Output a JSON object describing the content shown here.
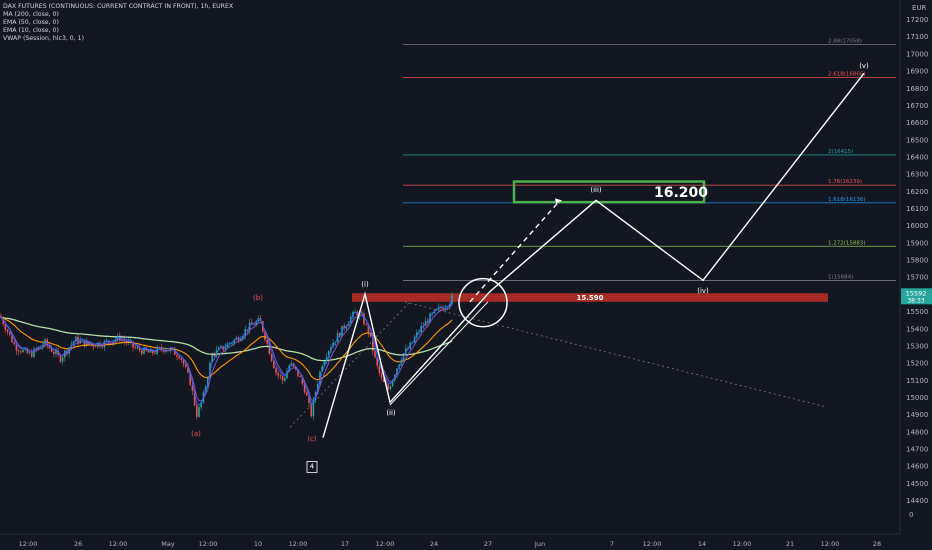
{
  "legend": {
    "title": "DAX FUTURES (CONTINUOUS: CURRENT CONTRACT IN FRONT), 1h, EUREX",
    "indicators": [
      "MA (200, close, 0)",
      "EMA (50, close, 0)",
      "EMA (10, close, 0)",
      "VWAP (Session, hlc3, 0, 1)"
    ]
  },
  "currency": "EUR",
  "price_badge": {
    "price": "15592",
    "timer": "38:33"
  },
  "colors": {
    "background": "#131722",
    "up": "#26a69a",
    "down": "#ef5350",
    "ma200": "#b2dfa7",
    "ema50": "#ff9800",
    "ema10": "#7e57c2",
    "vwap": "#2962ff",
    "wave": "#ffffff",
    "zone": "#b42d24",
    "target": "#4caf50"
  },
  "chart_data": {
    "type": "candlestick",
    "yaxis": {
      "ticks": [
        14400,
        14500,
        14600,
        14700,
        14800,
        14900,
        15000,
        15100,
        15200,
        15300,
        15400,
        15500,
        15600,
        15700,
        15800,
        15900,
        16000,
        16100,
        16200,
        16300,
        16400,
        16500,
        16600,
        16700,
        16800,
        16900,
        17000,
        17100,
        17200
      ],
      "extra_ticks": [
        "0"
      ]
    },
    "xaxis": {
      "ticks": [
        "12:00",
        "26",
        "12:00",
        "May",
        "12:00",
        "10",
        "12:00",
        "17",
        "12:00",
        "24",
        "27",
        "Jun",
        "7",
        "12:00",
        "14",
        "12:00",
        "21",
        "12:00",
        "28"
      ]
    },
    "price_path": [
      [
        0,
        15480
      ],
      [
        15,
        15300
      ],
      [
        30,
        15250
      ],
      [
        45,
        15320
      ],
      [
        60,
        15230
      ],
      [
        75,
        15340
      ],
      [
        90,
        15310
      ],
      [
        105,
        15320
      ],
      [
        120,
        15350
      ],
      [
        135,
        15290
      ],
      [
        150,
        15260
      ],
      [
        165,
        15290
      ],
      [
        180,
        15250
      ],
      [
        190,
        15100
      ],
      [
        197,
        14900
      ],
      [
        203,
        15000
      ],
      [
        212,
        15250
      ],
      [
        225,
        15300
      ],
      [
        238,
        15350
      ],
      [
        250,
        15420
      ],
      [
        260,
        15450
      ],
      [
        268,
        15300
      ],
      [
        276,
        15150
      ],
      [
        283,
        15100
      ],
      [
        290,
        15200
      ],
      [
        298,
        15140
      ],
      [
        305,
        15050
      ],
      [
        311,
        14900
      ],
      [
        316,
        15050
      ],
      [
        322,
        15200
      ],
      [
        330,
        15300
      ],
      [
        340,
        15380
      ],
      [
        348,
        15450
      ],
      [
        356,
        15500
      ],
      [
        362,
        15470
      ],
      [
        369,
        15380
      ],
      [
        376,
        15200
      ],
      [
        382,
        15100
      ],
      [
        388,
        15050
      ],
      [
        395,
        15150
      ],
      [
        402,
        15250
      ],
      [
        410,
        15300
      ],
      [
        420,
        15400
      ],
      [
        430,
        15470
      ],
      [
        440,
        15520
      ],
      [
        448,
        15550
      ],
      [
        453,
        15592
      ]
    ],
    "levels": [
      {
        "label": "2.88(17058)",
        "price": 17058,
        "color": "#787b86"
      },
      {
        "label": "2.618(16866)",
        "price": 16866,
        "color": "#ef5350"
      },
      {
        "label": "2(16415)",
        "price": 16415,
        "color": "#26a69a"
      },
      {
        "label": "1.76(16239)",
        "price": 16239,
        "color": "#ef5350"
      },
      {
        "label": "1.618(16136)",
        "price": 16136,
        "color": "#2196f3"
      },
      {
        "label": "1.272(15883)",
        "price": 15883,
        "color": "#8bc34a"
      },
      {
        "label": "1(15684)",
        "price": 15684,
        "color": "#787b86"
      }
    ],
    "zone": {
      "label": "15.590",
      "low": 15560,
      "high": 15610
    },
    "target": {
      "label": "16.200",
      "low": 16140,
      "high": 16260
    },
    "wave_labels": [
      {
        "label": "(i)",
        "price": 15650,
        "bar": 365,
        "color": "#ffffff"
      },
      {
        "label": "(ii)",
        "price": 14900,
        "bar": 391,
        "color": "#ffffff"
      },
      {
        "label": "(iii)",
        "price": 16200,
        "bar": 596,
        "color": "#ffffff"
      },
      {
        "label": "(iv)",
        "price": 15610,
        "bar": 703,
        "color": "#ffffff"
      },
      {
        "label": "(v)",
        "price": 16920,
        "bar": 864,
        "color": "#ffffff"
      },
      {
        "label": "(a)",
        "price": 14780,
        "bar": 196,
        "color": "#ef5350"
      },
      {
        "label": "(b)",
        "price": 15570,
        "bar": 258,
        "color": "#ef5350"
      },
      {
        "label": "(c)",
        "price": 14750,
        "bar": 312,
        "color": "#ef5350"
      },
      {
        "label": "4",
        "price": 14590,
        "bar": 312,
        "color": "#ffffff"
      }
    ]
  }
}
